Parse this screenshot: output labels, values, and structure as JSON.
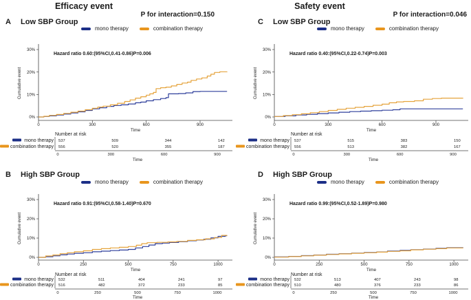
{
  "page": {
    "background": "#ffffff"
  },
  "columns": [
    {
      "title": "Efficacy event",
      "p_interaction": "P for interaction=0.150"
    },
    {
      "title": "Safety event",
      "p_interaction": "P for interaction=0.046"
    }
  ],
  "legend": {
    "mono_label": "mono therapy",
    "combination_label": "combination therapy",
    "mono_color": "#1c2f87",
    "combination_color": "#e8951d"
  },
  "risk_header": "Number at risk",
  "time_label": "Time",
  "chart_data": [
    {
      "panel_letter": "A",
      "group_title": "Low SBP Group",
      "type": "line",
      "annotation": "Hazard ratio 0.60:(95%CI,0.41-0.86)P=0.006",
      "xlabel": "Time",
      "ylabel": "Cumulative event",
      "ylim": [
        0,
        30
      ],
      "yticks": [
        0,
        10,
        20,
        30
      ],
      "xticks": [
        0,
        300,
        600,
        900
      ],
      "xmax": 1080,
      "series": [
        {
          "name": "mono therapy",
          "color": "#2e3f9b",
          "points": [
            [
              0,
              0
            ],
            [
              30,
              0.2
            ],
            [
              60,
              0.5
            ],
            [
              100,
              0.9
            ],
            [
              140,
              1.3
            ],
            [
              180,
              1.8
            ],
            [
              220,
              2.3
            ],
            [
              260,
              2.9
            ],
            [
              300,
              3.6
            ],
            [
              340,
              4.1
            ],
            [
              380,
              4.7
            ],
            [
              420,
              5.1
            ],
            [
              460,
              5.4
            ],
            [
              500,
              5.8
            ],
            [
              540,
              6.3
            ],
            [
              570,
              6.6
            ],
            [
              600,
              7.2
            ],
            [
              640,
              7.7
            ],
            [
              680,
              8.2
            ],
            [
              710,
              8.6
            ],
            [
              724,
              10.3
            ],
            [
              780,
              10.4
            ],
            [
              820,
              10.7
            ],
            [
              860,
              11.3
            ],
            [
              900,
              11.4
            ],
            [
              1050,
              11.4
            ]
          ]
        },
        {
          "name": "combination therapy",
          "color": "#e5a33c",
          "points": [
            [
              0,
              0
            ],
            [
              30,
              0.3
            ],
            [
              60,
              0.7
            ],
            [
              100,
              1.1
            ],
            [
              140,
              1.6
            ],
            [
              180,
              2.1
            ],
            [
              220,
              2.6
            ],
            [
              260,
              3.2
            ],
            [
              300,
              3.9
            ],
            [
              330,
              4.4
            ],
            [
              360,
              4.8
            ],
            [
              400,
              5.4
            ],
            [
              440,
              6.1
            ],
            [
              480,
              6.9
            ],
            [
              510,
              7.6
            ],
            [
              540,
              8.4
            ],
            [
              570,
              9.0
            ],
            [
              600,
              9.7
            ],
            [
              620,
              10.3
            ],
            [
              640,
              10.9
            ],
            [
              655,
              12.6
            ],
            [
              680,
              13.0
            ],
            [
              710,
              13.3
            ],
            [
              740,
              13.8
            ],
            [
              770,
              14.5
            ],
            [
              800,
              15.1
            ],
            [
              830,
              15.5
            ],
            [
              850,
              16.3
            ],
            [
              880,
              16.9
            ],
            [
              910,
              17.4
            ],
            [
              940,
              18.2
            ],
            [
              960,
              19.0
            ],
            [
              980,
              19.8
            ],
            [
              1010,
              20.1
            ],
            [
              1050,
              20.2
            ]
          ]
        }
      ],
      "number_at_risk": {
        "times": [
          0,
          300,
          600,
          900
        ],
        "rows": [
          {
            "name": "mono therapy",
            "color": "#1c2f87",
            "values": [
              "537",
              "509",
              "344",
              "142"
            ]
          },
          {
            "name": "combination therapy",
            "color": "#e8951d",
            "values": [
              "556",
              "520",
              "355",
              "187"
            ]
          }
        ]
      }
    },
    {
      "panel_letter": "B",
      "group_title": "High SBP Group",
      "type": "line",
      "annotation": "Hazard ratio 0.91:(95%CI,0.58-1.40)P=0.670",
      "xlabel": "Time",
      "ylabel": "Cumulative event",
      "ylim": [
        0,
        30
      ],
      "yticks": [
        0,
        10,
        20,
        30
      ],
      "xticks": [
        0,
        250,
        500,
        750,
        1000
      ],
      "xmax": 1080,
      "series": [
        {
          "name": "mono therapy",
          "color": "#2e3f9b",
          "points": [
            [
              0,
              0
            ],
            [
              40,
              0.3
            ],
            [
              80,
              0.8
            ],
            [
              120,
              1.3
            ],
            [
              160,
              1.7
            ],
            [
              200,
              2.1
            ],
            [
              250,
              2.4
            ],
            [
              300,
              2.9
            ],
            [
              350,
              3.2
            ],
            [
              400,
              3.5
            ],
            [
              450,
              3.8
            ],
            [
              500,
              4.1
            ],
            [
              540,
              4.9
            ],
            [
              580,
              5.6
            ],
            [
              615,
              6.4
            ],
            [
              650,
              7.1
            ],
            [
              690,
              7.4
            ],
            [
              730,
              7.7
            ],
            [
              780,
              8.1
            ],
            [
              830,
              8.6
            ],
            [
              880,
              9.0
            ],
            [
              920,
              9.4
            ],
            [
              960,
              10.1
            ],
            [
              1000,
              10.9
            ],
            [
              1040,
              11.2
            ]
          ]
        },
        {
          "name": "combination therapy",
          "color": "#e5a33c",
          "points": [
            [
              0,
              0
            ],
            [
              40,
              0.7
            ],
            [
              80,
              1.2
            ],
            [
              120,
              1.9
            ],
            [
              160,
              2.4
            ],
            [
              200,
              2.9
            ],
            [
              250,
              3.4
            ],
            [
              300,
              4.1
            ],
            [
              350,
              4.5
            ],
            [
              400,
              4.9
            ],
            [
              450,
              5.2
            ],
            [
              500,
              5.6
            ],
            [
              545,
              6.3
            ],
            [
              575,
              7.1
            ],
            [
              605,
              7.6
            ],
            [
              660,
              7.8
            ],
            [
              720,
              8.0
            ],
            [
              770,
              8.3
            ],
            [
              830,
              8.8
            ],
            [
              880,
              9.1
            ],
            [
              930,
              9.6
            ],
            [
              980,
              10.3
            ],
            [
              1020,
              11.4
            ],
            [
              1050,
              11.5
            ]
          ]
        }
      ],
      "number_at_risk": {
        "times": [
          0,
          250,
          500,
          750,
          1000
        ],
        "rows": [
          {
            "name": "mono therapy",
            "color": "#1c2f87",
            "values": [
              "532",
              "511",
              "404",
              "241",
              "97"
            ]
          },
          {
            "name": "combination therapy",
            "color": "#e8951d",
            "values": [
              "516",
              "482",
              "372",
              "233",
              "85"
            ]
          }
        ]
      }
    },
    {
      "panel_letter": "C",
      "group_title": "Low SBP Group",
      "type": "line",
      "annotation": "Hazard ratio 0.40:(95%CI,0.22-0.74)P=0.003",
      "xlabel": "Time",
      "ylabel": "Cumulative event",
      "ylim": [
        0,
        30
      ],
      "yticks": [
        0,
        10,
        20,
        30
      ],
      "xticks": [
        0,
        300,
        600,
        900
      ],
      "xmax": 1080,
      "series": [
        {
          "name": "mono therapy",
          "color": "#2e3f9b",
          "points": [
            [
              0,
              0.2
            ],
            [
              60,
              0.5
            ],
            [
              120,
              0.9
            ],
            [
              180,
              1.2
            ],
            [
              240,
              1.5
            ],
            [
              300,
              1.8
            ],
            [
              360,
              2.1
            ],
            [
              420,
              2.4
            ],
            [
              480,
              2.6
            ],
            [
              540,
              2.8
            ],
            [
              600,
              3.0
            ],
            [
              660,
              3.2
            ],
            [
              700,
              3.6
            ],
            [
              1050,
              3.6
            ]
          ]
        },
        {
          "name": "combination therapy",
          "color": "#e5a33c",
          "points": [
            [
              0,
              0.2
            ],
            [
              50,
              0.6
            ],
            [
              100,
              1.0
            ],
            [
              150,
              1.4
            ],
            [
              200,
              1.9
            ],
            [
              250,
              2.4
            ],
            [
              300,
              2.9
            ],
            [
              350,
              3.4
            ],
            [
              400,
              3.9
            ],
            [
              450,
              4.3
            ],
            [
              500,
              4.7
            ],
            [
              550,
              5.2
            ],
            [
              600,
              5.7
            ],
            [
              640,
              6.3
            ],
            [
              680,
              6.7
            ],
            [
              720,
              6.9
            ],
            [
              780,
              7.2
            ],
            [
              830,
              7.9
            ],
            [
              880,
              8.2
            ],
            [
              930,
              8.4
            ],
            [
              1050,
              8.5
            ]
          ]
        }
      ],
      "number_at_risk": {
        "times": [
          0,
          300,
          600,
          900
        ],
        "rows": [
          {
            "name": "mono therapy",
            "color": "#1c2f87",
            "values": [
              "537",
              "515",
              "383",
              "150"
            ]
          },
          {
            "name": "combination therapy",
            "color": "#e8951d",
            "values": [
              "556",
              "513",
              "382",
              "167"
            ]
          }
        ]
      }
    },
    {
      "panel_letter": "D",
      "group_title": "High SBP Group",
      "type": "line",
      "annotation": "Hazard ratio 0.99:(95%CI,0.52-1.89)P=0.980",
      "xlabel": "Time",
      "ylabel": "Cumulative event",
      "ylim": [
        0,
        30
      ],
      "yticks": [
        0,
        10,
        20,
        30
      ],
      "xticks": [
        0,
        250,
        500,
        750,
        1000
      ],
      "xmax": 1080,
      "series": [
        {
          "name": "mono therapy",
          "color": "#2e3f9b",
          "points": [
            [
              0,
              0.2
            ],
            [
              80,
              0.5
            ],
            [
              150,
              0.9
            ],
            [
              220,
              1.2
            ],
            [
              290,
              1.6
            ],
            [
              360,
              1.9
            ],
            [
              430,
              2.2
            ],
            [
              500,
              2.5
            ],
            [
              570,
              2.8
            ],
            [
              630,
              3.3
            ],
            [
              700,
              3.6
            ],
            [
              760,
              4.0
            ],
            [
              830,
              4.3
            ],
            [
              900,
              4.7
            ],
            [
              960,
              5.0
            ],
            [
              1050,
              5.2
            ]
          ]
        },
        {
          "name": "combination therapy",
          "color": "#e5a33c",
          "points": [
            [
              0,
              0.1
            ],
            [
              80,
              0.4
            ],
            [
              150,
              0.8
            ],
            [
              220,
              1.1
            ],
            [
              290,
              1.5
            ],
            [
              360,
              1.8
            ],
            [
              430,
              2.1
            ],
            [
              500,
              2.4
            ],
            [
              570,
              2.7
            ],
            [
              630,
              3.1
            ],
            [
              700,
              3.4
            ],
            [
              760,
              3.9
            ],
            [
              830,
              4.2
            ],
            [
              900,
              4.5
            ],
            [
              960,
              4.9
            ],
            [
              1050,
              5.1
            ]
          ]
        }
      ],
      "number_at_risk": {
        "times": [
          0,
          250,
          500,
          750,
          1000
        ],
        "rows": [
          {
            "name": "mono therapy",
            "color": "#1c2f87",
            "values": [
              "532",
              "513",
              "407",
              "243",
              "98"
            ]
          },
          {
            "name": "combination therapy",
            "color": "#e8951d",
            "values": [
              "510",
              "480",
              "376",
              "233",
              "86"
            ]
          }
        ]
      }
    }
  ]
}
